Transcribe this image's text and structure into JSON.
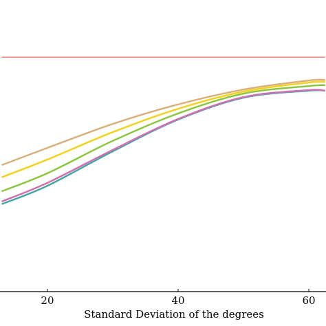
{
  "chart_data": {
    "type": "line",
    "x_label": "Standard Deviation of the degrees",
    "x": [
      13,
      20,
      30,
      40,
      50,
      60,
      62.5
    ],
    "xlim": [
      12.74,
      62.63
    ],
    "xticks": [
      20,
      40,
      60
    ],
    "ylim": [
      0,
      1
    ],
    "series": [
      {
        "color": "#e8837a",
        "values": [
          0.804,
          0.804,
          0.804,
          0.804,
          0.804,
          0.804,
          0.804
        ]
      },
      {
        "color": "#d9b07a",
        "values": [
          0.434,
          0.493,
          0.575,
          0.642,
          0.693,
          0.724,
          0.726
        ]
      },
      {
        "color": "#f2d21b",
        "values": [
          0.392,
          0.453,
          0.547,
          0.627,
          0.686,
          0.717,
          0.719
        ]
      },
      {
        "color": "#8cc63e",
        "values": [
          0.344,
          0.406,
          0.517,
          0.611,
          0.679,
          0.705,
          0.708
        ]
      },
      {
        "color": "#45a6a6",
        "values": [
          0.3,
          0.363,
          0.481,
          0.59,
          0.665,
          0.689,
          0.689
        ]
      },
      {
        "color": "#d070b0",
        "values": [
          0.309,
          0.373,
          0.486,
          0.592,
          0.667,
          0.691,
          0.689
        ]
      }
    ]
  }
}
